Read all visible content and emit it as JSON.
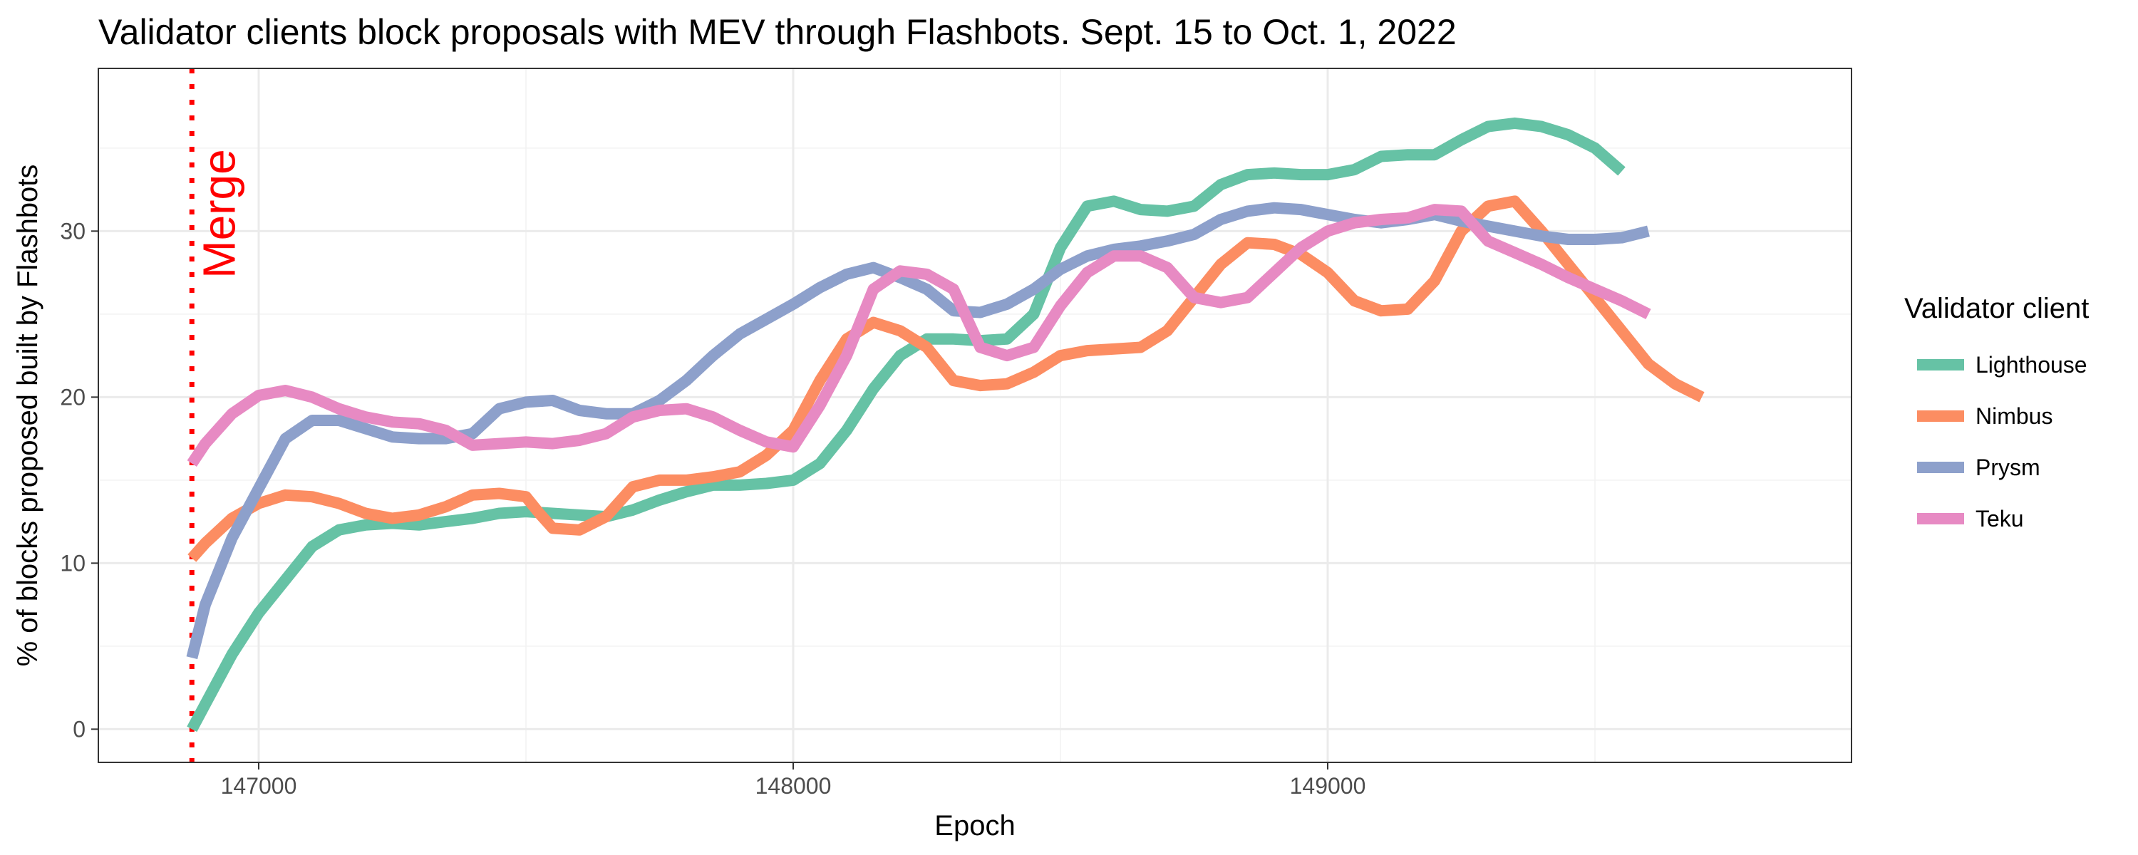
{
  "chart_data": {
    "type": "line",
    "title": "Validator clients block proposals with MEV through Flashbots. Sept. 15 to Oct. 1, 2022",
    "xlabel": "Epoch",
    "ylabel": "% of blocks proposed built by Flashbots",
    "xlim": [
      146700,
      149980
    ],
    "ylim": [
      -2,
      39.8
    ],
    "x_ticks": [
      147000,
      148000,
      149000
    ],
    "x_tick_labels": [
      "147000",
      "148000",
      "149000"
    ],
    "y_ticks": [
      0,
      10,
      20,
      30
    ],
    "y_tick_labels": [
      "0",
      "10",
      "20",
      "30"
    ],
    "grid": true,
    "legend": {
      "title": "Validator client",
      "position": "right"
    },
    "annotation": {
      "label": "Merge",
      "x": 146875,
      "color": "#ff0000"
    },
    "series": [
      {
        "name": "Lighthouse",
        "color": "#66c2a5",
        "points": [
          [
            146875,
            0
          ],
          [
            146900,
            1.5
          ],
          [
            146950,
            4.5
          ],
          [
            147000,
            7
          ],
          [
            147050,
            9
          ],
          [
            147100,
            11
          ],
          [
            147150,
            12
          ],
          [
            147200,
            12.3
          ],
          [
            147250,
            12.4
          ],
          [
            147300,
            12.3
          ],
          [
            147350,
            12.5
          ],
          [
            147400,
            12.7
          ],
          [
            147450,
            13
          ],
          [
            147500,
            13.1
          ],
          [
            147550,
            13
          ],
          [
            147600,
            12.9
          ],
          [
            147650,
            12.8
          ],
          [
            147700,
            13.2
          ],
          [
            147750,
            13.8
          ],
          [
            147800,
            14.3
          ],
          [
            147850,
            14.7
          ],
          [
            147900,
            14.7
          ],
          [
            147950,
            14.8
          ],
          [
            148000,
            15
          ],
          [
            148050,
            16
          ],
          [
            148100,
            18
          ],
          [
            148150,
            20.5
          ],
          [
            148200,
            22.5
          ],
          [
            148250,
            23.5
          ],
          [
            148300,
            23.5
          ],
          [
            148350,
            23.4
          ],
          [
            148400,
            23.5
          ],
          [
            148450,
            25
          ],
          [
            148500,
            29
          ],
          [
            148550,
            31.5
          ],
          [
            148600,
            31.8
          ],
          [
            148650,
            31.3
          ],
          [
            148700,
            31.2
          ],
          [
            148750,
            31.5
          ],
          [
            148800,
            32.8
          ],
          [
            148850,
            33.4
          ],
          [
            148900,
            33.5
          ],
          [
            148950,
            33.4
          ],
          [
            149000,
            33.4
          ],
          [
            149050,
            33.7
          ],
          [
            149100,
            34.5
          ],
          [
            149150,
            34.6
          ],
          [
            149200,
            34.6
          ],
          [
            149250,
            35.5
          ],
          [
            149300,
            36.3
          ],
          [
            149350,
            36.5
          ],
          [
            149400,
            36.3
          ],
          [
            149450,
            35.8
          ],
          [
            149500,
            35
          ],
          [
            149550,
            33.6
          ]
        ]
      },
      {
        "name": "Nimbus",
        "color": "#fc8d62",
        "points": [
          [
            146875,
            10.3
          ],
          [
            146900,
            11.2
          ],
          [
            146950,
            12.7
          ],
          [
            147000,
            13.6
          ],
          [
            147050,
            14.1
          ],
          [
            147100,
            14
          ],
          [
            147150,
            13.6
          ],
          [
            147200,
            13
          ],
          [
            147250,
            12.7
          ],
          [
            147300,
            12.9
          ],
          [
            147350,
            13.4
          ],
          [
            147400,
            14.1
          ],
          [
            147450,
            14.2
          ],
          [
            147500,
            14
          ],
          [
            147525,
            13
          ],
          [
            147550,
            12.1
          ],
          [
            147600,
            12
          ],
          [
            147650,
            12.8
          ],
          [
            147700,
            14.6
          ],
          [
            147750,
            15
          ],
          [
            147800,
            15
          ],
          [
            147850,
            15.2
          ],
          [
            147900,
            15.5
          ],
          [
            147950,
            16.5
          ],
          [
            148000,
            18
          ],
          [
            148050,
            21
          ],
          [
            148100,
            23.5
          ],
          [
            148150,
            24.5
          ],
          [
            148200,
            24
          ],
          [
            148250,
            23
          ],
          [
            148300,
            21
          ],
          [
            148350,
            20.7
          ],
          [
            148400,
            20.8
          ],
          [
            148450,
            21.5
          ],
          [
            148500,
            22.5
          ],
          [
            148550,
            22.8
          ],
          [
            148600,
            22.9
          ],
          [
            148650,
            23
          ],
          [
            148700,
            24
          ],
          [
            148750,
            26
          ],
          [
            148800,
            28
          ],
          [
            148850,
            29.3
          ],
          [
            148900,
            29.2
          ],
          [
            148950,
            28.6
          ],
          [
            149000,
            27.5
          ],
          [
            149050,
            25.8
          ],
          [
            149100,
            25.2
          ],
          [
            149150,
            25.3
          ],
          [
            149200,
            27
          ],
          [
            149250,
            30
          ],
          [
            149300,
            31.5
          ],
          [
            149350,
            31.8
          ],
          [
            149400,
            30
          ],
          [
            149450,
            28
          ],
          [
            149500,
            26
          ],
          [
            149550,
            24
          ],
          [
            149600,
            22
          ],
          [
            149650,
            20.8
          ],
          [
            149700,
            20
          ]
        ]
      },
      {
        "name": "Prysm",
        "color": "#8da0cb",
        "points": [
          [
            146875,
            4.3
          ],
          [
            146900,
            7.5
          ],
          [
            146950,
            11.5
          ],
          [
            147000,
            14.5
          ],
          [
            147050,
            17.5
          ],
          [
            147100,
            18.6
          ],
          [
            147150,
            18.6
          ],
          [
            147200,
            18.1
          ],
          [
            147250,
            17.6
          ],
          [
            147300,
            17.5
          ],
          [
            147350,
            17.5
          ],
          [
            147400,
            17.8
          ],
          [
            147450,
            19.3
          ],
          [
            147500,
            19.7
          ],
          [
            147550,
            19.8
          ],
          [
            147600,
            19.2
          ],
          [
            147650,
            19
          ],
          [
            147700,
            19
          ],
          [
            147750,
            19.8
          ],
          [
            147800,
            21
          ],
          [
            147850,
            22.5
          ],
          [
            147900,
            23.8
          ],
          [
            147950,
            24.7
          ],
          [
            148000,
            25.6
          ],
          [
            148050,
            26.6
          ],
          [
            148100,
            27.4
          ],
          [
            148150,
            27.8
          ],
          [
            148200,
            27.2
          ],
          [
            148250,
            26.5
          ],
          [
            148300,
            25.2
          ],
          [
            148350,
            25.1
          ],
          [
            148400,
            25.6
          ],
          [
            148450,
            26.5
          ],
          [
            148500,
            27.7
          ],
          [
            148550,
            28.5
          ],
          [
            148600,
            28.9
          ],
          [
            148650,
            29.1
          ],
          [
            148700,
            29.4
          ],
          [
            148750,
            29.8
          ],
          [
            148800,
            30.7
          ],
          [
            148850,
            31.2
          ],
          [
            148900,
            31.4
          ],
          [
            148950,
            31.3
          ],
          [
            149000,
            31
          ],
          [
            149050,
            30.7
          ],
          [
            149100,
            30.5
          ],
          [
            149150,
            30.7
          ],
          [
            149200,
            31
          ],
          [
            149250,
            30.6
          ],
          [
            149300,
            30.3
          ],
          [
            149350,
            30
          ],
          [
            149400,
            29.7
          ],
          [
            149450,
            29.5
          ],
          [
            149500,
            29.5
          ],
          [
            149550,
            29.6
          ],
          [
            149600,
            30
          ]
        ]
      },
      {
        "name": "Teku",
        "color": "#e78ac3",
        "points": [
          [
            146875,
            16
          ],
          [
            146900,
            17.2
          ],
          [
            146950,
            19
          ],
          [
            147000,
            20.1
          ],
          [
            147050,
            20.4
          ],
          [
            147100,
            20
          ],
          [
            147150,
            19.3
          ],
          [
            147200,
            18.8
          ],
          [
            147250,
            18.5
          ],
          [
            147300,
            18.4
          ],
          [
            147350,
            18
          ],
          [
            147400,
            17.1
          ],
          [
            147450,
            17.2
          ],
          [
            147500,
            17.3
          ],
          [
            147550,
            17.2
          ],
          [
            147600,
            17.4
          ],
          [
            147650,
            17.8
          ],
          [
            147700,
            18.8
          ],
          [
            147750,
            19.2
          ],
          [
            147800,
            19.3
          ],
          [
            147850,
            18.8
          ],
          [
            147900,
            18
          ],
          [
            147950,
            17.3
          ],
          [
            148000,
            17
          ],
          [
            148050,
            19.5
          ],
          [
            148100,
            22.5
          ],
          [
            148150,
            26.5
          ],
          [
            148200,
            27.6
          ],
          [
            148250,
            27.4
          ],
          [
            148300,
            26.5
          ],
          [
            148350,
            23
          ],
          [
            148400,
            22.5
          ],
          [
            148450,
            23
          ],
          [
            148500,
            25.5
          ],
          [
            148550,
            27.5
          ],
          [
            148600,
            28.5
          ],
          [
            148650,
            28.5
          ],
          [
            148700,
            27.8
          ],
          [
            148750,
            26
          ],
          [
            148800,
            25.7
          ],
          [
            148850,
            26
          ],
          [
            148900,
            27.5
          ],
          [
            148950,
            29
          ],
          [
            149000,
            30
          ],
          [
            149050,
            30.5
          ],
          [
            149100,
            30.7
          ],
          [
            149150,
            30.8
          ],
          [
            149200,
            31.3
          ],
          [
            149250,
            31.2
          ],
          [
            149300,
            29.4
          ],
          [
            149350,
            28.7
          ],
          [
            149400,
            28
          ],
          [
            149450,
            27.2
          ],
          [
            149500,
            26.5
          ],
          [
            149550,
            25.8
          ],
          [
            149600,
            25
          ]
        ]
      }
    ]
  }
}
